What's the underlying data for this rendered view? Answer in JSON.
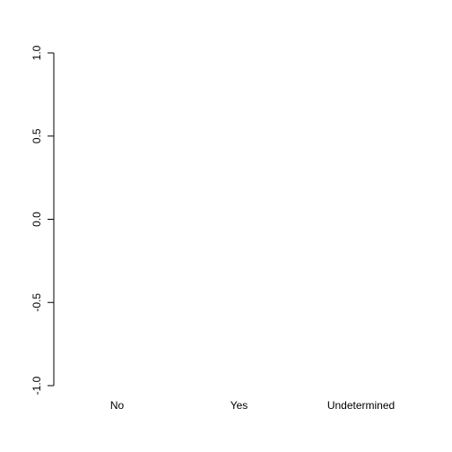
{
  "chart_data": {
    "type": "bar",
    "categories": [
      "No",
      "Yes",
      "Undetermined"
    ],
    "values": [
      0,
      0,
      0
    ],
    "title": "",
    "xlabel": "",
    "ylabel": "",
    "ylim": [
      -1.0,
      1.0
    ],
    "yticks": [
      "-1.0",
      "-0.5",
      "0.0",
      "0.5",
      "1.0"
    ],
    "yticks_values": [
      -1.0,
      -0.5,
      0.0,
      0.5,
      1.0
    ],
    "grid": false,
    "legend": "none",
    "bar_fill": "#ffffff",
    "bar_stroke": "#000000"
  }
}
